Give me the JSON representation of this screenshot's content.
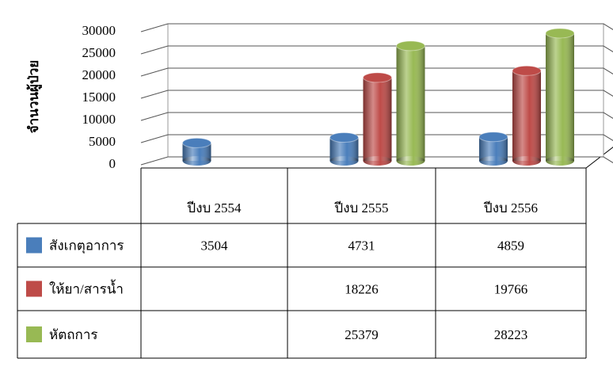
{
  "chart_data": {
    "type": "bar",
    "y_label": "จำนวนผู้ป่วย",
    "categories": [
      "ปีงบ 2554",
      "ปีงบ 2555",
      "ปีงบ 2556"
    ],
    "series": [
      {
        "name": "สังเกตุอาการ",
        "color": "#4a7ebb",
        "values": [
          3504,
          4731,
          4859
        ]
      },
      {
        "name": "ให้ยา/สารน้ำ",
        "color": "#be4b48",
        "values": [
          null,
          18226,
          19766
        ]
      },
      {
        "name": "หัตถการ",
        "color": "#98b954",
        "values": [
          null,
          25379,
          28223
        ]
      }
    ],
    "ylim": [
      0,
      30000
    ],
    "yticks": [
      0,
      5000,
      10000,
      15000,
      20000,
      25000,
      30000
    ],
    "grid": true
  }
}
